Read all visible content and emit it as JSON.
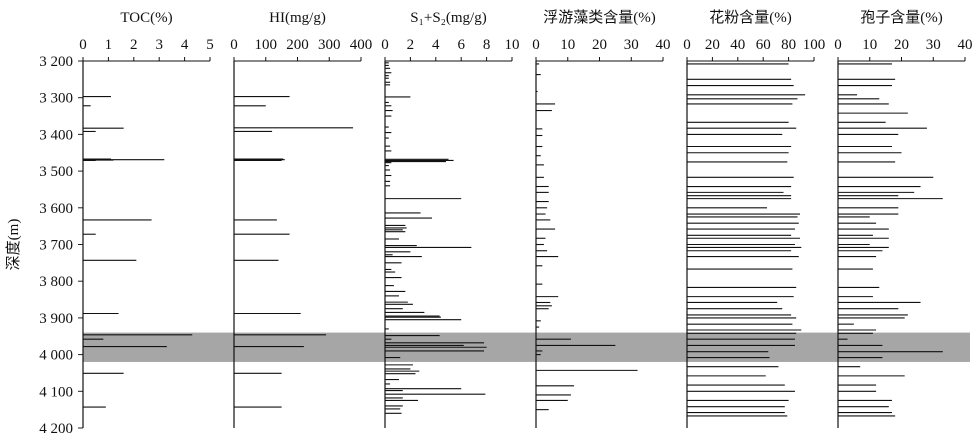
{
  "y_axis": {
    "label": "深度(m)",
    "ticks": [
      "3 200",
      "3 300",
      "3 400",
      "3 500",
      "3 600",
      "3 700",
      "3 800",
      "3 900",
      "4 000",
      "4 100",
      "4 200"
    ],
    "tick_values": [
      3200,
      3300,
      3400,
      3500,
      3600,
      3700,
      3800,
      3900,
      4000,
      4100,
      4200
    ]
  },
  "highlight": {
    "from": 3940,
    "to": 4020,
    "color": "#a6a6a6"
  },
  "chart_data": [
    {
      "type": "bar",
      "orientation": "horizontal",
      "title": "TOC(%)",
      "xlim": [
        0,
        5
      ],
      "xticks": [
        "0",
        "1",
        "2",
        "3",
        "4",
        "5"
      ],
      "ylim": [
        3200,
        4200
      ],
      "ylabel": "深度(m)",
      "points": [
        [
          3297,
          1.1
        ],
        [
          3322,
          0.3
        ],
        [
          3383,
          1.6
        ],
        [
          3392,
          0.5
        ],
        [
          3467,
          1.1
        ],
        [
          3469,
          3.2
        ],
        [
          3470,
          1.2
        ],
        [
          3471,
          0.5
        ],
        [
          3633,
          2.7
        ],
        [
          3672,
          0.5
        ],
        [
          3743,
          2.1
        ],
        [
          3888,
          1.4
        ],
        [
          3946,
          4.3
        ],
        [
          3958,
          0.8
        ],
        [
          3978,
          3.3
        ],
        [
          4051,
          1.6
        ],
        [
          4143,
          0.9
        ]
      ]
    },
    {
      "type": "bar",
      "orientation": "horizontal",
      "title": "HI(mg/g)",
      "xlim": [
        0,
        400
      ],
      "xticks": [
        "0",
        "100",
        "200",
        "300",
        "400"
      ],
      "ylim": [
        3200,
        4200
      ],
      "points": [
        [
          3297,
          175
        ],
        [
          3322,
          100
        ],
        [
          3382,
          375
        ],
        [
          3392,
          120
        ],
        [
          3467,
          155
        ],
        [
          3469,
          160
        ],
        [
          3471,
          150
        ],
        [
          3633,
          135
        ],
        [
          3672,
          175
        ],
        [
          3743,
          140
        ],
        [
          3888,
          210
        ],
        [
          3946,
          290
        ],
        [
          3978,
          220
        ],
        [
          4051,
          150
        ],
        [
          4143,
          150
        ]
      ]
    },
    {
      "type": "bar",
      "orientation": "horizontal",
      "title": "S₁+S₂(mg/g)",
      "xlim": [
        0,
        10
      ],
      "xticks": [
        "0",
        "2",
        "4",
        "6",
        "8",
        "10"
      ],
      "ylim": [
        3200,
        4200
      ],
      "points": [
        [
          3205,
          0.3
        ],
        [
          3212,
          0.3
        ],
        [
          3220,
          0.4
        ],
        [
          3232,
          0.5
        ],
        [
          3240,
          0.3
        ],
        [
          3247,
          0.3
        ],
        [
          3258,
          0.4
        ],
        [
          3265,
          0.4
        ],
        [
          3298,
          2.0
        ],
        [
          3313,
          0.3
        ],
        [
          3322,
          0.5
        ],
        [
          3335,
          0.6
        ],
        [
          3350,
          0.5
        ],
        [
          3380,
          0.3
        ],
        [
          3395,
          0.5
        ],
        [
          3410,
          0.3
        ],
        [
          3432,
          0.4
        ],
        [
          3445,
          0.5
        ],
        [
          3468,
          5.0
        ],
        [
          3471,
          5.4
        ],
        [
          3474,
          4.8
        ],
        [
          3477,
          0.5
        ],
        [
          3485,
          0.3
        ],
        [
          3497,
          0.4
        ],
        [
          3512,
          0.5
        ],
        [
          3528,
          0.4
        ],
        [
          3540,
          0.4
        ],
        [
          3575,
          6.0
        ],
        [
          3614,
          2.8
        ],
        [
          3628,
          3.7
        ],
        [
          3648,
          1.6
        ],
        [
          3655,
          1.7
        ],
        [
          3660,
          1.4
        ],
        [
          3665,
          1.6
        ],
        [
          3685,
          1.1
        ],
        [
          3703,
          2.5
        ],
        [
          3708,
          6.8
        ],
        [
          3720,
          2.0
        ],
        [
          3728,
          0.6
        ],
        [
          3733,
          2.9
        ],
        [
          3750,
          1.3
        ],
        [
          3768,
          0.5
        ],
        [
          3775,
          0.8
        ],
        [
          3790,
          1.3
        ],
        [
          3812,
          0.7
        ],
        [
          3828,
          1.6
        ],
        [
          3840,
          1.1
        ],
        [
          3857,
          1.8
        ],
        [
          3863,
          2.2
        ],
        [
          3875,
          1.4
        ],
        [
          3885,
          3.1
        ],
        [
          3895,
          4.3
        ],
        [
          3898,
          4.4
        ],
        [
          3905,
          6.0
        ],
        [
          3930,
          0.3
        ],
        [
          3948,
          4.3
        ],
        [
          3958,
          0.5
        ],
        [
          3968,
          7.8
        ],
        [
          3975,
          6.2
        ],
        [
          3980,
          8.0
        ],
        [
          3990,
          7.8
        ],
        [
          4008,
          1.2
        ],
        [
          4028,
          2.2
        ],
        [
          4039,
          2.0
        ],
        [
          4045,
          2.7
        ],
        [
          4052,
          2.4
        ],
        [
          4068,
          1.1
        ],
        [
          4080,
          0.4
        ],
        [
          4093,
          6.0
        ],
        [
          4098,
          1.4
        ],
        [
          4108,
          7.9
        ],
        [
          4118,
          1.4
        ],
        [
          4125,
          2.6
        ],
        [
          4140,
          1.4
        ],
        [
          4148,
          1.2
        ],
        [
          4160,
          1.3
        ]
      ]
    },
    {
      "type": "bar",
      "orientation": "horizontal",
      "title": "浮游藻类含量(%)",
      "xlim": [
        0,
        40
      ],
      "xticks": [
        "0",
        "10",
        "20",
        "30",
        "40"
      ],
      "ylim": [
        3200,
        4200
      ],
      "points": [
        [
          3208,
          1.0
        ],
        [
          3237,
          1.5
        ],
        [
          3283,
          0.5
        ],
        [
          3317,
          6.0
        ],
        [
          3335,
          5.0
        ],
        [
          3385,
          2.0
        ],
        [
          3403,
          2.0
        ],
        [
          3433,
          2.0
        ],
        [
          3458,
          1.5
        ],
        [
          3483,
          2.5
        ],
        [
          3517,
          2.5
        ],
        [
          3542,
          4.0
        ],
        [
          3558,
          4.0
        ],
        [
          3583,
          4.0
        ],
        [
          3600,
          3.5
        ],
        [
          3617,
          3.0
        ],
        [
          3633,
          4.5
        ],
        [
          3658,
          6.0
        ],
        [
          3683,
          3.0
        ],
        [
          3700,
          2.5
        ],
        [
          3717,
          3.5
        ],
        [
          3733,
          7.0
        ],
        [
          3758,
          2.0
        ],
        [
          3808,
          2.0
        ],
        [
          3842,
          7.0
        ],
        [
          3858,
          4.5
        ],
        [
          3867,
          5.0
        ],
        [
          3875,
          4.0
        ],
        [
          3908,
          1.5
        ],
        [
          3925,
          1.0
        ],
        [
          3958,
          11.0
        ],
        [
          3975,
          25.0
        ],
        [
          3990,
          2.0
        ],
        [
          4000,
          1.5
        ],
        [
          4043,
          32.0
        ],
        [
          4085,
          12.0
        ],
        [
          4110,
          11.0
        ],
        [
          4125,
          10.0
        ],
        [
          4150,
          4.0
        ]
      ]
    },
    {
      "type": "bar",
      "orientation": "horizontal",
      "title": "花粉含量(%)",
      "xlim": [
        0,
        100
      ],
      "xticks": [
        "0",
        "20",
        "40",
        "60",
        "80",
        "100"
      ],
      "ylim": [
        3200,
        4200
      ],
      "points": [
        [
          3200,
          88
        ],
        [
          3208,
          80
        ],
        [
          3250,
          82
        ],
        [
          3267,
          84
        ],
        [
          3292,
          93
        ],
        [
          3303,
          87
        ],
        [
          3317,
          83
        ],
        [
          3367,
          80
        ],
        [
          3383,
          86
        ],
        [
          3400,
          75
        ],
        [
          3433,
          82
        ],
        [
          3450,
          80
        ],
        [
          3475,
          79
        ],
        [
          3517,
          84
        ],
        [
          3542,
          82
        ],
        [
          3558,
          76
        ],
        [
          3567,
          82
        ],
        [
          3575,
          82
        ],
        [
          3600,
          63
        ],
        [
          3617,
          89
        ],
        [
          3625,
          87
        ],
        [
          3642,
          88
        ],
        [
          3658,
          85
        ],
        [
          3675,
          82
        ],
        [
          3683,
          89
        ],
        [
          3700,
          85
        ],
        [
          3708,
          90
        ],
        [
          3717,
          82
        ],
        [
          3733,
          88
        ],
        [
          3767,
          83
        ],
        [
          3817,
          86
        ],
        [
          3842,
          84
        ],
        [
          3858,
          71
        ],
        [
          3875,
          75
        ],
        [
          3892,
          82
        ],
        [
          3900,
          86
        ],
        [
          3917,
          83
        ],
        [
          3933,
          90
        ],
        [
          3942,
          86
        ],
        [
          3958,
          85
        ],
        [
          3975,
          85
        ],
        [
          3992,
          64
        ],
        [
          4008,
          65
        ],
        [
          4033,
          72
        ],
        [
          4058,
          62
        ],
        [
          4083,
          77
        ],
        [
          4100,
          85
        ],
        [
          4125,
          80
        ],
        [
          4142,
          77
        ],
        [
          4158,
          77
        ],
        [
          4167,
          79
        ]
      ]
    },
    {
      "type": "bar",
      "orientation": "horizontal",
      "title": "孢子含量(%)",
      "xlim": [
        0,
        40
      ],
      "xticks": [
        "0",
        "10",
        "20",
        "30",
        "40"
      ],
      "ylim": [
        3200,
        4200
      ],
      "points": [
        [
          3200,
          18
        ],
        [
          3208,
          17
        ],
        [
          3250,
          18
        ],
        [
          3267,
          17
        ],
        [
          3292,
          6
        ],
        [
          3303,
          13
        ],
        [
          3317,
          16
        ],
        [
          3342,
          22
        ],
        [
          3367,
          15
        ],
        [
          3383,
          28
        ],
        [
          3400,
          19
        ],
        [
          3433,
          17
        ],
        [
          3450,
          20
        ],
        [
          3475,
          18
        ],
        [
          3517,
          30
        ],
        [
          3542,
          26
        ],
        [
          3558,
          24
        ],
        [
          3567,
          19
        ],
        [
          3575,
          33
        ],
        [
          3600,
          19
        ],
        [
          3617,
          19
        ],
        [
          3625,
          10
        ],
        [
          3642,
          12
        ],
        [
          3658,
          16
        ],
        [
          3675,
          11
        ],
        [
          3683,
          16
        ],
        [
          3700,
          10
        ],
        [
          3708,
          16
        ],
        [
          3717,
          14
        ],
        [
          3733,
          12
        ],
        [
          3767,
          11
        ],
        [
          3817,
          13
        ],
        [
          3842,
          11
        ],
        [
          3858,
          26
        ],
        [
          3875,
          19
        ],
        [
          3892,
          22
        ],
        [
          3900,
          21
        ],
        [
          3917,
          5
        ],
        [
          3933,
          12
        ],
        [
          3942,
          11
        ],
        [
          3958,
          3
        ],
        [
          3975,
          14
        ],
        [
          3992,
          33
        ],
        [
          4008,
          14
        ],
        [
          4033,
          7
        ],
        [
          4058,
          21
        ],
        [
          4083,
          12
        ],
        [
          4100,
          12
        ],
        [
          4125,
          17
        ],
        [
          4142,
          16
        ],
        [
          4158,
          17
        ],
        [
          4167,
          18
        ]
      ]
    }
  ]
}
